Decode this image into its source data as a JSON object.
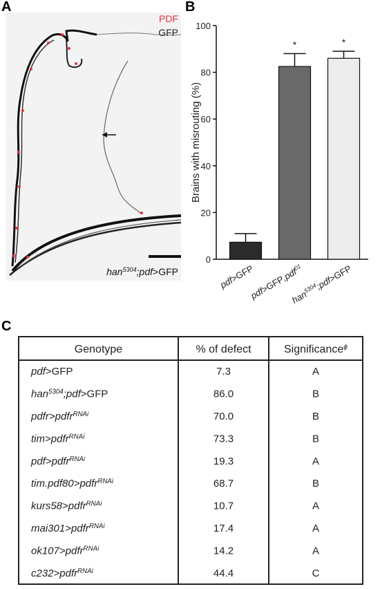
{
  "panel_labels": [
    "A",
    "B",
    "C"
  ],
  "image": {
    "legend": [
      {
        "name": "PDF",
        "color": "#e8323c"
      },
      {
        "name": "GFP",
        "color": "#222222"
      }
    ],
    "caption": [
      {
        "text": "han",
        "style": "italic"
      },
      {
        "text": "5304",
        "style": "sup"
      },
      {
        "text": ";pdf",
        "style": "italic"
      },
      {
        "text": ">GFP",
        "style": "normal"
      }
    ]
  },
  "chart_data": {
    "type": "bar",
    "y_label": "Brains with misrouting (%)",
    "categories": [
      [
        {
          "text": "pdf",
          "style": "italic"
        },
        {
          "text": ">GFP",
          "style": "normal"
        }
      ],
      [
        {
          "text": "pdf",
          "style": "italic"
        },
        {
          "text": ">GFP",
          "style": "normal"
        },
        {
          "text": ",pdf",
          "style": "italic"
        },
        {
          "text": "01",
          "style": "sup"
        }
      ],
      [
        {
          "text": "han",
          "style": "italic"
        },
        {
          "text": "5304",
          "style": "sup"
        },
        {
          "text": ";pdf",
          "style": "italic"
        },
        {
          "text": ">GFP",
          "style": "normal"
        }
      ]
    ],
    "values": [
      7.3,
      82.5,
      86.0
    ],
    "errors": [
      3.7,
      5.5,
      3.0
    ],
    "annotations": [
      null,
      "*",
      "*"
    ],
    "colors": [
      "#2b2b2b",
      "#6a6a6a",
      "#ececec"
    ],
    "ylim": [
      0,
      100
    ],
    "yticks": [
      0,
      20,
      40,
      60,
      80,
      100
    ]
  },
  "table": {
    "header": [
      [
        {
          "text": "Genotype",
          "style": "normal"
        }
      ],
      [
        {
          "text": "% of defect",
          "style": "normal"
        }
      ],
      [
        {
          "text": "Significance",
          "style": "normal"
        },
        {
          "text": "ϕ",
          "style": "sup"
        }
      ]
    ],
    "rows": [
      [
        [
          {
            "text": "pdf",
            "style": "italic"
          },
          {
            "text": ">GFP",
            "style": "normal"
          }
        ],
        "7.3",
        "A"
      ],
      [
        [
          {
            "text": "han",
            "style": "italic"
          },
          {
            "text": "5304",
            "style": "sup"
          },
          {
            "text": ";pdf",
            "style": "italic"
          },
          {
            "text": ">GFP",
            "style": "normal"
          }
        ],
        "86.0",
        "B"
      ],
      [
        [
          {
            "text": "pdfr>pdfr",
            "style": "italic"
          },
          {
            "text": "RNAi",
            "style": "sup"
          }
        ],
        "70.0",
        "B"
      ],
      [
        [
          {
            "text": "tim>pdfr",
            "style": "italic"
          },
          {
            "text": "RNAi",
            "style": "sup"
          }
        ],
        "73.3",
        "B"
      ],
      [
        [
          {
            "text": "pdf>pdfr",
            "style": "italic"
          },
          {
            "text": "RNAi",
            "style": "sup"
          }
        ],
        "19.3",
        "A"
      ],
      [
        [
          {
            "text": "tim.pdf80>pdfr",
            "style": "italic"
          },
          {
            "text": "RNAi",
            "style": "sup"
          }
        ],
        "68.7",
        "B"
      ],
      [
        [
          {
            "text": "kurs58>pdfr",
            "style": "italic"
          },
          {
            "text": "RNAi",
            "style": "sup"
          }
        ],
        "10.7",
        "A"
      ],
      [
        [
          {
            "text": "mai301>pdfr",
            "style": "italic"
          },
          {
            "text": "RNAi",
            "style": "sup"
          }
        ],
        "17.4",
        "A"
      ],
      [
        [
          {
            "text": "ok107>pdfr",
            "style": "italic"
          },
          {
            "text": "RNAi",
            "style": "sup"
          }
        ],
        "14.2",
        "A"
      ],
      [
        [
          {
            "text": "c232>pdfr",
            "style": "italic"
          },
          {
            "text": "RNAi",
            "style": "sup"
          }
        ],
        "44.4",
        "C"
      ]
    ]
  }
}
